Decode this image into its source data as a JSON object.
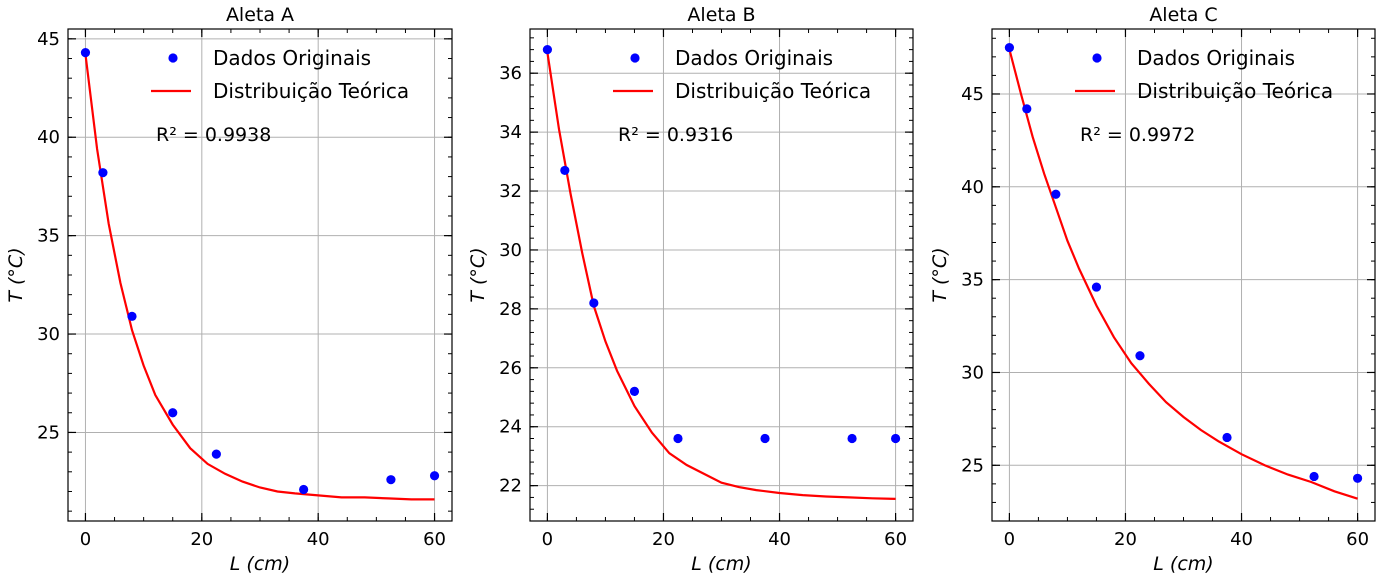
{
  "chart_data": [
    {
      "type": "scatter",
      "title": "Aleta A",
      "xlabel": "L (cm)",
      "ylabel": "T (°C)",
      "xlim": [
        -3,
        63
      ],
      "ylim": [
        20.5,
        45.5
      ],
      "xticks": [
        0,
        20,
        40,
        60
      ],
      "yticks": [
        25,
        30,
        35,
        40,
        45
      ],
      "grid": true,
      "legend_position": "top-right",
      "annotation": "R² = 0.9938",
      "series": [
        {
          "name": "Dados Originais",
          "kind": "scatter",
          "color": "#0000ff",
          "x": [
            0,
            3,
            8,
            15,
            22.5,
            37.5,
            52.5,
            60
          ],
          "y": [
            44.3,
            38.2,
            30.9,
            26.0,
            23.9,
            22.1,
            22.6,
            22.8
          ]
        },
        {
          "name": "Distribuição Teórica",
          "kind": "line",
          "color": "#ff0000",
          "x": [
            0,
            2,
            4,
            6,
            8,
            10,
            12,
            15,
            18,
            21,
            24,
            27,
            30,
            33,
            36,
            40,
            44,
            48,
            52,
            56,
            60
          ],
          "y": [
            44.2,
            39.4,
            35.6,
            32.6,
            30.2,
            28.4,
            26.9,
            25.4,
            24.2,
            23.4,
            22.9,
            22.5,
            22.2,
            22.0,
            21.9,
            21.8,
            21.7,
            21.7,
            21.65,
            21.6,
            21.6
          ]
        }
      ]
    },
    {
      "type": "scatter",
      "title": "Aleta B",
      "xlabel": "L (cm)",
      "ylabel": "T (°C)",
      "xlim": [
        -3,
        63
      ],
      "ylim": [
        20.8,
        37.5
      ],
      "xticks": [
        0,
        20,
        40,
        60
      ],
      "yticks": [
        22,
        24,
        26,
        28,
        30,
        32,
        34,
        36
      ],
      "grid": true,
      "legend_position": "top-right",
      "annotation": "R² = 0.9316",
      "series": [
        {
          "name": "Dados Originais",
          "kind": "scatter",
          "color": "#0000ff",
          "x": [
            0,
            3,
            8,
            15,
            22.5,
            37.5,
            52.5,
            60
          ],
          "y": [
            36.8,
            32.7,
            28.2,
            25.2,
            23.6,
            23.6,
            23.6,
            23.6
          ]
        },
        {
          "name": "Distribuição Teórica",
          "kind": "line",
          "color": "#ff0000",
          "x": [
            0,
            2,
            4,
            6,
            8,
            10,
            12,
            15,
            18,
            21,
            24,
            27,
            30,
            33,
            36,
            40,
            44,
            48,
            52,
            56,
            60
          ],
          "y": [
            36.7,
            34.1,
            31.9,
            29.9,
            28.1,
            26.9,
            25.9,
            24.7,
            23.8,
            23.1,
            22.7,
            22.4,
            22.1,
            21.95,
            21.85,
            21.75,
            21.68,
            21.63,
            21.6,
            21.57,
            21.55
          ]
        }
      ]
    },
    {
      "type": "scatter",
      "title": "Aleta C",
      "xlabel": "L (cm)",
      "ylabel": "T (°C)",
      "xlim": [
        -3,
        63
      ],
      "ylim": [
        22.0,
        48.5
      ],
      "xticks": [
        0,
        20,
        40,
        60
      ],
      "yticks": [
        25,
        30,
        35,
        40,
        45
      ],
      "grid": true,
      "legend_position": "top-right",
      "annotation": "R² = 0.9972",
      "series": [
        {
          "name": "Dados Originais",
          "kind": "scatter",
          "color": "#0000ff",
          "x": [
            0,
            3,
            8,
            15,
            22.5,
            37.5,
            52.5,
            60
          ],
          "y": [
            47.5,
            44.2,
            39.6,
            34.6,
            30.9,
            26.5,
            24.4,
            24.3
          ]
        },
        {
          "name": "Distribuição Teórica",
          "kind": "line",
          "color": "#ff0000",
          "x": [
            0,
            2,
            4,
            6,
            8,
            10,
            12,
            15,
            18,
            21,
            24,
            27,
            30,
            33,
            36,
            40,
            44,
            48,
            52,
            56,
            60
          ],
          "y": [
            47.4,
            45.0,
            42.7,
            40.7,
            38.9,
            37.1,
            35.6,
            33.6,
            31.9,
            30.5,
            29.4,
            28.4,
            27.6,
            26.9,
            26.3,
            25.6,
            25.0,
            24.5,
            24.1,
            23.6,
            23.2
          ]
        }
      ]
    }
  ]
}
